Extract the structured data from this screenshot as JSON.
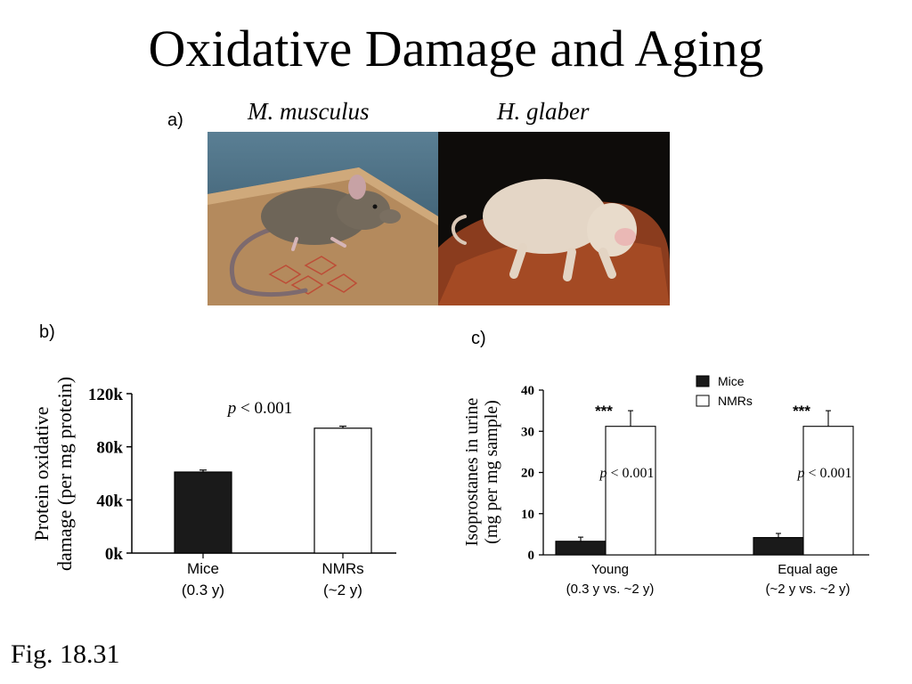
{
  "title": "Oxidative Damage and Aging",
  "panels": {
    "a": "a)",
    "b": "b)",
    "c": "c)"
  },
  "photos": {
    "left_species": "M. musculus",
    "right_species": "H. glaber"
  },
  "caption": "Fig. 18.31",
  "chart_data": [
    {
      "type": "bar",
      "categories": [
        [
          "Mice",
          "(0.3 y)"
        ],
        [
          "NMRs",
          "(~2 y)"
        ]
      ],
      "values": [
        61000,
        94000
      ],
      "errors": [
        1500,
        1500
      ],
      "bar_colors": [
        "#1a1a1a",
        "#ffffff"
      ],
      "ylabel": [
        "Protein oxidative",
        "damage (per mg protein)"
      ],
      "ylim": [
        0,
        120000
      ],
      "ytick_values": [
        0,
        40000,
        80000,
        120000
      ],
      "ytick_labels": [
        "0k",
        "40k",
        "80k",
        "120k"
      ],
      "annotation": "p < 0.001",
      "annotation_italic": "p",
      "annotation_rest": " < 0.001"
    },
    {
      "type": "bar",
      "categories": [
        [
          "Young",
          "(0.3 y vs. ~2 y)"
        ],
        [
          "Equal age",
          "(~2 y vs. ~2 y)"
        ]
      ],
      "series": [
        {
          "name": "Mice",
          "values": [
            3.3,
            4.2
          ],
          "errors": [
            1.0,
            1.0
          ],
          "color": "#1a1a1a"
        },
        {
          "name": "NMRs",
          "values": [
            31.2,
            31.2
          ],
          "errors": [
            3.8,
            3.8
          ],
          "color": "#ffffff"
        }
      ],
      "ylabel": [
        "Isoprostanes in urine",
        "(mg per mg sample)"
      ],
      "ylim": [
        0,
        40
      ],
      "ytick_values": [
        0,
        10,
        20,
        30,
        40
      ],
      "ytick_labels": [
        "0",
        "10",
        "20",
        "30",
        "40"
      ],
      "significance": [
        "***",
        "***"
      ],
      "annotations": [
        "p < 0.001",
        "p < 0.001"
      ],
      "annotation_italic": "p",
      "annotation_rest": " < 0.001",
      "legend_position": "top-right"
    }
  ]
}
